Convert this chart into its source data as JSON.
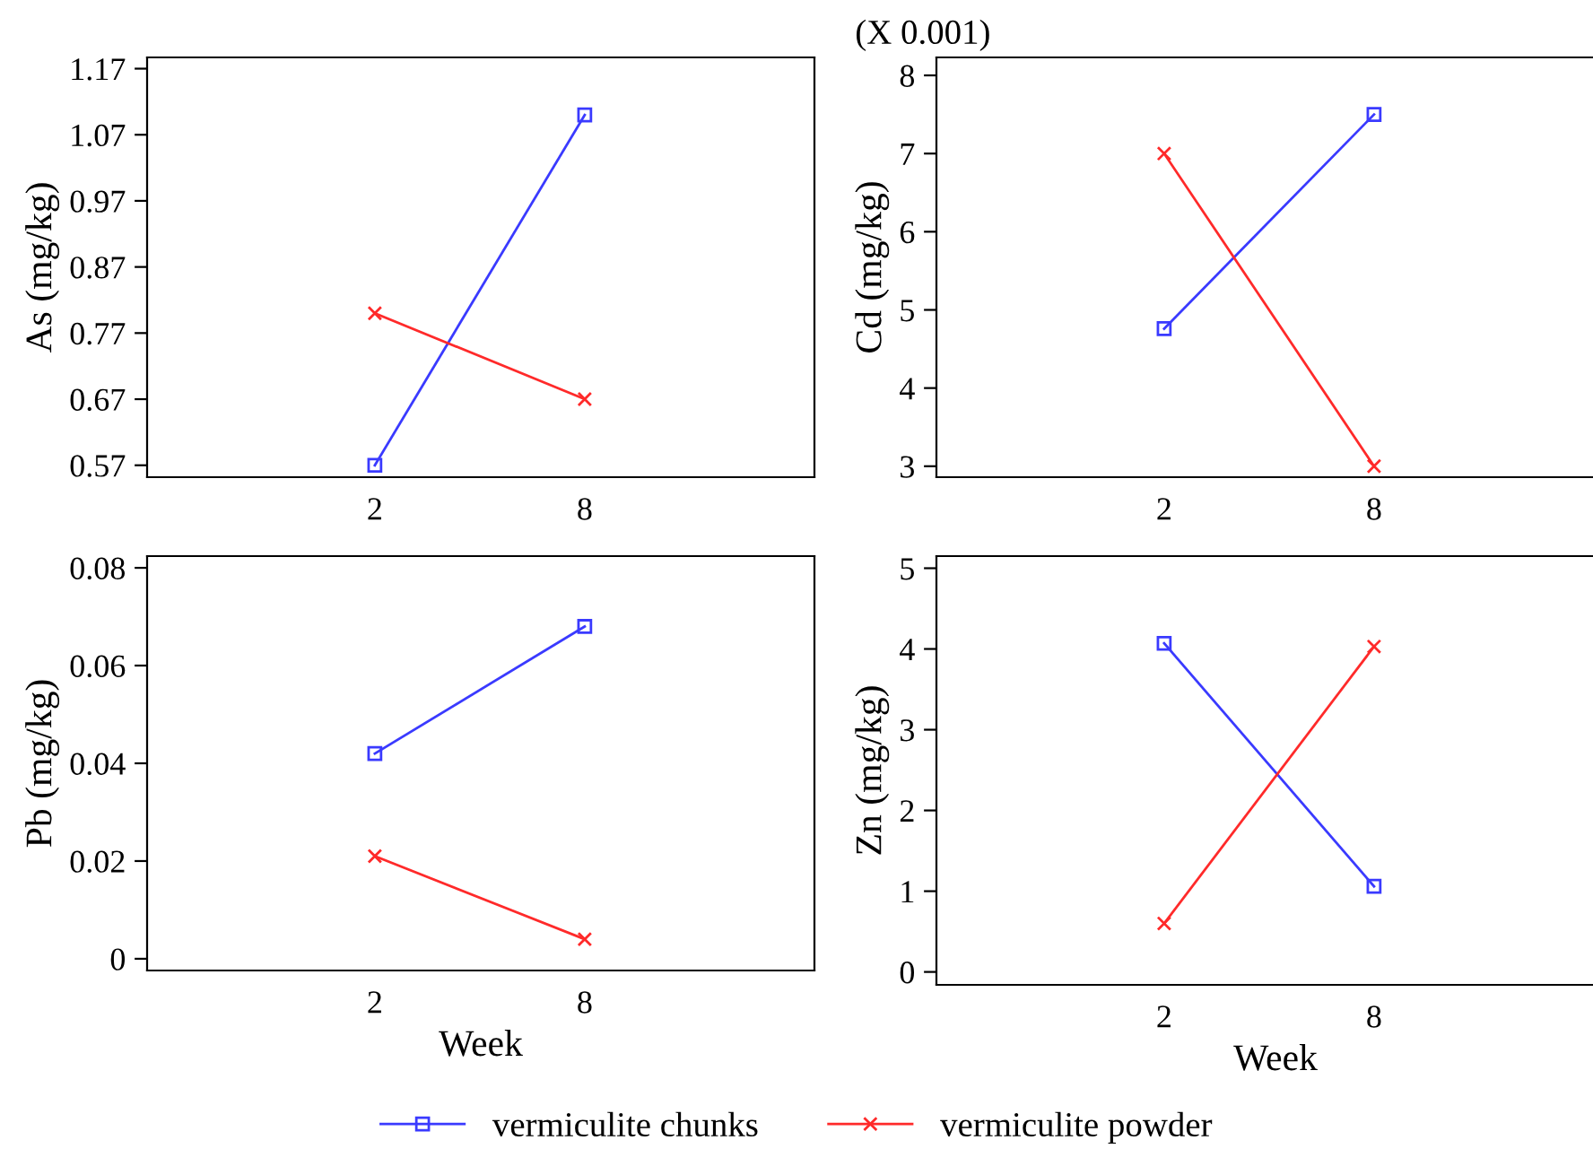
{
  "chart_data": [
    {
      "type": "line",
      "ylabel": "As (mg/kg)",
      "categories": [
        "2",
        "8"
      ],
      "ylim": [
        0.552,
        1.187
      ],
      "yticks": [
        0.57,
        0.67,
        0.77,
        0.87,
        0.97,
        1.07,
        1.17
      ],
      "grid": false,
      "legend": "bottom",
      "series": [
        {
          "name": "vermiculite chunks",
          "color": "#3a3aff",
          "marker": "square",
          "values": [
            0.57,
            1.1
          ]
        },
        {
          "name": "vermiculite powder",
          "color": "#ff2a2a",
          "marker": "cross",
          "values": [
            0.8,
            0.67
          ]
        }
      ]
    },
    {
      "type": "line",
      "ylabel": "Cd (mg/kg)",
      "annotations": [
        "(X 0.001)"
      ],
      "categories": [
        "2",
        "8"
      ],
      "ylim": [
        2.86,
        8.23
      ],
      "yticks": [
        3,
        4,
        5,
        6,
        7,
        8
      ],
      "grid": false,
      "series": [
        {
          "color": "#3a3aff",
          "marker": "square",
          "values": [
            4.76,
            7.5
          ]
        },
        {
          "color": "#ff2a2a",
          "marker": "cross",
          "values": [
            7.0,
            3.0
          ]
        }
      ]
    },
    {
      "type": "line",
      "xlabel": "Week",
      "ylabel": "Pb (mg/kg)",
      "categories": [
        "2",
        "8"
      ],
      "ylim": [
        -0.0024,
        0.0824
      ],
      "yticks": [
        0,
        0.02,
        0.04,
        0.06,
        0.08
      ],
      "grid": false,
      "series": [
        {
          "color": "#3a3aff",
          "marker": "square",
          "values": [
            0.042,
            0.068
          ]
        },
        {
          "color": "#ff2a2a",
          "marker": "cross",
          "values": [
            0.021,
            0.004
          ]
        }
      ]
    },
    {
      "type": "line",
      "xlabel": "Week",
      "ylabel": "Zn (mg/kg)",
      "categories": [
        "2",
        "8"
      ],
      "ylim": [
        -0.16,
        5.15
      ],
      "yticks": [
        0,
        1,
        2,
        3,
        4,
        5
      ],
      "grid": false,
      "series": [
        {
          "color": "#3a3aff",
          "marker": "square",
          "values": [
            4.07,
            1.06
          ]
        },
        {
          "color": "#ff2a2a",
          "marker": "cross",
          "values": [
            0.6,
            4.03
          ]
        }
      ]
    }
  ]
}
